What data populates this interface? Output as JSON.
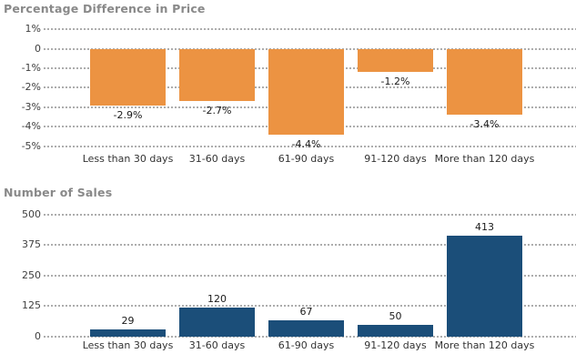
{
  "window": {
    "background": "#FFFFFF"
  },
  "colors": {
    "title_text": "#898989",
    "tick_text": "#3F3F3F",
    "category_text": "#333333",
    "value_label_text": "#1A1A1A",
    "gridline": "#ADADAD",
    "background": "#FFFFFF",
    "orange_bar": "#EC9342",
    "blue_bar": "#1B4E79"
  },
  "chart_data": [
    {
      "type": "bar",
      "title": "Percentage Difference in Price",
      "categories": [
        "Less than 30 days",
        "31-60 days",
        "61-90 days",
        "91-120 days",
        "More than 120 days"
      ],
      "values": [
        -2.9,
        -2.7,
        -4.4,
        -1.2,
        -3.4
      ],
      "value_labels": [
        "-2.9%",
        "-2.7%",
        "-4.4%",
        "-1.2%",
        "-3.4%"
      ],
      "y_ticks": [
        {
          "label": "1%",
          "value": 1
        },
        {
          "label": "0",
          "value": 0
        },
        {
          "label": "-1%",
          "value": -1
        },
        {
          "label": "-2%",
          "value": -2
        },
        {
          "label": "-3%",
          "value": -3
        },
        {
          "label": "-4%",
          "value": -4
        },
        {
          "label": "-5%",
          "value": -5
        }
      ],
      "ylim": [
        -5,
        1
      ],
      "bar_color": "#EC9342",
      "grid": "dotted horizontal",
      "legend": "none",
      "xlabel": "",
      "ylabel": ""
    },
    {
      "type": "bar",
      "title": "Number of Sales",
      "categories": [
        "Less than 30 days",
        "31-60 days",
        "61-90 days",
        "91-120 days",
        "More than 120 days"
      ],
      "values": [
        29,
        120,
        67,
        50,
        413
      ],
      "value_labels": [
        "29",
        "120",
        "67",
        "50",
        "413"
      ],
      "y_ticks": [
        {
          "label": "500",
          "value": 500
        },
        {
          "label": "375",
          "value": 375
        },
        {
          "label": "250",
          "value": 250
        },
        {
          "label": "125",
          "value": 125
        },
        {
          "label": "0",
          "value": 0
        }
      ],
      "ylim": [
        0,
        500
      ],
      "bar_color": "#1B4E79",
      "grid": "dotted horizontal",
      "legend": "none",
      "xlabel": "",
      "ylabel": ""
    }
  ]
}
